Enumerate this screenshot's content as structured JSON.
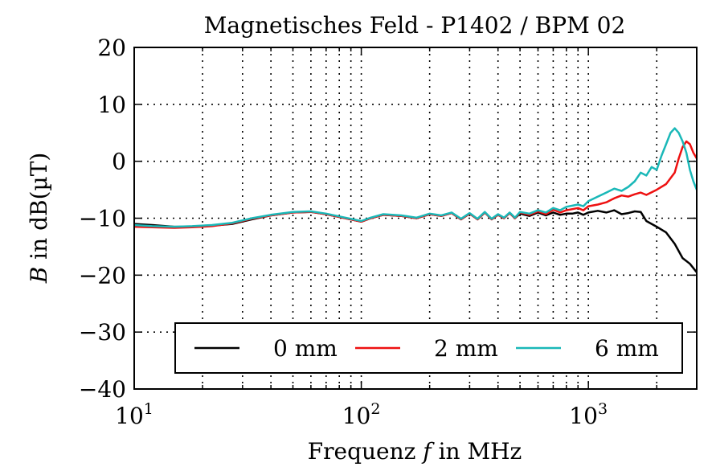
{
  "chart_data": {
    "type": "line",
    "title": "Magnetisches Feld - P1402 / BPM 02",
    "xlabel_main": "Frequenz ",
    "xlabel_var": "f",
    "xlabel_tail": " in MHz",
    "ylabel_var": "B",
    "ylabel_tail": " in dB(µT)",
    "x_scale": "log",
    "xlim": [
      10,
      3000
    ],
    "ylim": [
      -40,
      20
    ],
    "grid": true,
    "x_ticks": [
      {
        "value": 10,
        "base": "10",
        "exp": "1"
      },
      {
        "value": 100,
        "base": "10",
        "exp": "2"
      },
      {
        "value": 1000,
        "base": "10",
        "exp": "3"
      }
    ],
    "y_ticks": [
      {
        "value": 20,
        "label": "20"
      },
      {
        "value": 10,
        "label": "10"
      },
      {
        "value": 0,
        "label": "0"
      },
      {
        "value": -10,
        "label": "−10"
      },
      {
        "value": -20,
        "label": "−20"
      },
      {
        "value": -30,
        "label": "−30"
      },
      {
        "value": -40,
        "label": "−40"
      }
    ],
    "legend_position": "lower-center",
    "series": [
      {
        "name": "0 mm",
        "color": "#000000",
        "x": [
          10,
          12,
          15,
          18,
          22,
          27,
          33,
          40,
          50,
          60,
          70,
          85,
          100,
          110,
          125,
          150,
          175,
          200,
          225,
          250,
          275,
          300,
          325,
          350,
          375,
          400,
          425,
          450,
          475,
          500,
          550,
          600,
          650,
          700,
          750,
          800,
          850,
          900,
          950,
          1000,
          1100,
          1200,
          1300,
          1400,
          1500,
          1600,
          1700,
          1800,
          2000,
          2200,
          2400,
          2600,
          2800,
          3000
        ],
        "y": [
          -11.0,
          -11.2,
          -11.5,
          -11.5,
          -11.3,
          -11.0,
          -10.2,
          -9.5,
          -9.0,
          -8.9,
          -9.3,
          -10.0,
          -10.6,
          -10.0,
          -9.4,
          -9.6,
          -10.0,
          -9.3,
          -9.6,
          -9.1,
          -10.2,
          -9.2,
          -10.2,
          -9.0,
          -10.2,
          -9.4,
          -10.0,
          -9.1,
          -10.0,
          -9.2,
          -9.6,
          -9.0,
          -9.5,
          -9.0,
          -9.4,
          -9.2,
          -9.2,
          -9.0,
          -9.4,
          -9.0,
          -8.7,
          -9.0,
          -8.6,
          -9.3,
          -9.1,
          -8.8,
          -8.9,
          -10.5,
          -11.5,
          -12.5,
          -14.5,
          -17.0,
          -18.0,
          -19.5
        ]
      },
      {
        "name": "2 mm",
        "color": "#ee1111",
        "x": [
          10,
          12,
          15,
          18,
          22,
          27,
          33,
          40,
          50,
          60,
          70,
          85,
          100,
          110,
          125,
          150,
          175,
          200,
          225,
          250,
          275,
          300,
          325,
          350,
          375,
          400,
          425,
          450,
          475,
          500,
          550,
          600,
          650,
          700,
          750,
          800,
          850,
          900,
          950,
          1000,
          1100,
          1200,
          1300,
          1400,
          1500,
          1600,
          1700,
          1800,
          2000,
          2200,
          2400,
          2500,
          2600,
          2700,
          2800,
          2900,
          3000
        ],
        "y": [
          -11.5,
          -11.6,
          -11.7,
          -11.6,
          -11.4,
          -10.9,
          -10.1,
          -9.5,
          -9.0,
          -8.9,
          -9.3,
          -10.0,
          -10.6,
          -10.0,
          -9.4,
          -9.6,
          -10.0,
          -9.3,
          -9.6,
          -9.1,
          -10.2,
          -9.2,
          -10.2,
          -9.0,
          -10.2,
          -9.4,
          -10.0,
          -9.1,
          -10.0,
          -9.0,
          -9.4,
          -8.8,
          -9.3,
          -8.5,
          -9.0,
          -8.6,
          -8.4,
          -8.2,
          -8.6,
          -7.9,
          -7.6,
          -7.2,
          -6.5,
          -6.0,
          -6.2,
          -5.8,
          -5.5,
          -5.9,
          -5.0,
          -4.0,
          -2.0,
          0.5,
          2.5,
          3.5,
          3.0,
          1.5,
          0.5
        ]
      },
      {
        "name": "6 mm",
        "color": "#1ab8b8",
        "x": [
          10,
          12,
          15,
          18,
          22,
          27,
          33,
          40,
          50,
          60,
          70,
          85,
          100,
          110,
          125,
          150,
          175,
          200,
          225,
          250,
          275,
          300,
          325,
          350,
          375,
          400,
          425,
          450,
          475,
          500,
          550,
          600,
          650,
          700,
          750,
          800,
          850,
          900,
          950,
          1000,
          1100,
          1200,
          1300,
          1400,
          1500,
          1600,
          1700,
          1800,
          1900,
          2000,
          2100,
          2200,
          2300,
          2400,
          2500,
          2600,
          2700,
          2800,
          2900,
          3000
        ],
        "y": [
          -11.2,
          -11.4,
          -11.5,
          -11.4,
          -11.2,
          -10.8,
          -10.0,
          -9.4,
          -8.9,
          -8.8,
          -9.2,
          -9.9,
          -10.5,
          -9.9,
          -9.3,
          -9.5,
          -9.9,
          -9.2,
          -9.5,
          -9.0,
          -10.1,
          -9.1,
          -10.1,
          -8.9,
          -10.1,
          -9.3,
          -9.9,
          -9.0,
          -9.9,
          -8.9,
          -9.2,
          -8.6,
          -9.0,
          -8.2,
          -8.6,
          -8.0,
          -7.8,
          -7.6,
          -7.9,
          -7.0,
          -6.2,
          -5.5,
          -4.8,
          -5.2,
          -4.5,
          -3.5,
          -2.0,
          -2.5,
          -1.0,
          -1.5,
          1.0,
          3.0,
          5.0,
          5.8,
          5.0,
          3.5,
          1.5,
          -1.5,
          -3.5,
          -5.0
        ]
      }
    ]
  }
}
